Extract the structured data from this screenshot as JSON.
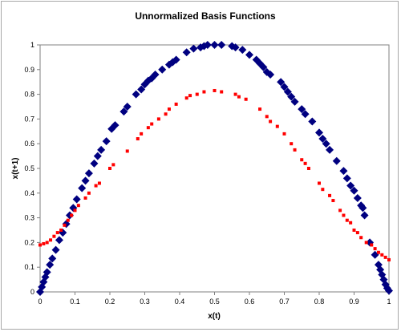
{
  "chart_data": {
    "type": "scatter",
    "title": "Unnormalized Basis Functions",
    "xlabel": "x(t)",
    "ylabel": "x(t+1)",
    "xlim": [
      0,
      1
    ],
    "ylim": [
      0,
      1
    ],
    "x_ticks": [
      "0",
      "0.1",
      "0.2",
      "0.3",
      "0.4",
      "0.5",
      "0.6",
      "0.7",
      "0.8",
      "0.9",
      "1"
    ],
    "y_ticks": [
      "0",
      "0.1",
      "0.2",
      "0.3",
      "0.4",
      "0.5",
      "0.6",
      "0.7",
      "0.8",
      "0.9",
      "1"
    ],
    "grid": false,
    "legend": "none",
    "series": [
      {
        "color": "#000080",
        "marker": "diamond",
        "points": [
          [
            0.0,
            0.0
          ],
          [
            0.005,
            0.02
          ],
          [
            0.01,
            0.04
          ],
          [
            0.015,
            0.06
          ],
          [
            0.02,
            0.08
          ],
          [
            0.028,
            0.11
          ],
          [
            0.035,
            0.135
          ],
          [
            0.045,
            0.17
          ],
          [
            0.055,
            0.21
          ],
          [
            0.065,
            0.24
          ],
          [
            0.075,
            0.275
          ],
          [
            0.085,
            0.31
          ],
          [
            0.095,
            0.34
          ],
          [
            0.105,
            0.375
          ],
          [
            0.12,
            0.42
          ],
          [
            0.13,
            0.45
          ],
          [
            0.14,
            0.48
          ],
          [
            0.155,
            0.52
          ],
          [
            0.165,
            0.55
          ],
          [
            0.175,
            0.575
          ],
          [
            0.19,
            0.61
          ],
          [
            0.205,
            0.66
          ],
          [
            0.215,
            0.675
          ],
          [
            0.24,
            0.73
          ],
          [
            0.25,
            0.75
          ],
          [
            0.275,
            0.8
          ],
          [
            0.29,
            0.82
          ],
          [
            0.3,
            0.84
          ],
          [
            0.31,
            0.855
          ],
          [
            0.32,
            0.865
          ],
          [
            0.33,
            0.88
          ],
          [
            0.35,
            0.9
          ],
          [
            0.37,
            0.92
          ],
          [
            0.38,
            0.93
          ],
          [
            0.39,
            0.94
          ],
          [
            0.42,
            0.97
          ],
          [
            0.44,
            0.985
          ],
          [
            0.46,
            0.99
          ],
          [
            0.47,
            0.995
          ],
          [
            0.48,
            1.0
          ],
          [
            0.5,
            1.0
          ],
          [
            0.52,
            1.0
          ],
          [
            0.55,
            0.995
          ],
          [
            0.56,
            0.99
          ],
          [
            0.58,
            0.98
          ],
          [
            0.6,
            0.96
          ],
          [
            0.62,
            0.94
          ],
          [
            0.63,
            0.925
          ],
          [
            0.64,
            0.91
          ],
          [
            0.65,
            0.89
          ],
          [
            0.66,
            0.88
          ],
          [
            0.69,
            0.85
          ],
          [
            0.7,
            0.83
          ],
          [
            0.71,
            0.81
          ],
          [
            0.72,
            0.79
          ],
          [
            0.73,
            0.77
          ],
          [
            0.75,
            0.74
          ],
          [
            0.76,
            0.72
          ],
          [
            0.78,
            0.69
          ],
          [
            0.8,
            0.645
          ],
          [
            0.81,
            0.62
          ],
          [
            0.82,
            0.6
          ],
          [
            0.83,
            0.575
          ],
          [
            0.85,
            0.53
          ],
          [
            0.87,
            0.49
          ],
          [
            0.88,
            0.46
          ],
          [
            0.89,
            0.43
          ],
          [
            0.9,
            0.41
          ],
          [
            0.91,
            0.38
          ],
          [
            0.92,
            0.35
          ],
          [
            0.925,
            0.34
          ],
          [
            0.93,
            0.31
          ],
          [
            0.945,
            0.2
          ],
          [
            0.96,
            0.15
          ],
          [
            0.97,
            0.11
          ],
          [
            0.975,
            0.09
          ],
          [
            0.98,
            0.07
          ],
          [
            0.985,
            0.05
          ],
          [
            0.99,
            0.03
          ],
          [
            0.995,
            0.015
          ],
          [
            1.0,
            0.005
          ]
        ]
      },
      {
        "color": "#ff0000",
        "marker": "square",
        "points": [
          [
            0.0,
            0.19
          ],
          [
            0.01,
            0.195
          ],
          [
            0.02,
            0.2
          ],
          [
            0.03,
            0.21
          ],
          [
            0.04,
            0.225
          ],
          [
            0.05,
            0.24
          ],
          [
            0.06,
            0.25
          ],
          [
            0.07,
            0.27
          ],
          [
            0.08,
            0.29
          ],
          [
            0.09,
            0.31
          ],
          [
            0.1,
            0.33
          ],
          [
            0.11,
            0.35
          ],
          [
            0.13,
            0.38
          ],
          [
            0.14,
            0.4
          ],
          [
            0.16,
            0.43
          ],
          [
            0.17,
            0.44
          ],
          [
            0.2,
            0.5
          ],
          [
            0.21,
            0.515
          ],
          [
            0.25,
            0.57
          ],
          [
            0.28,
            0.62
          ],
          [
            0.29,
            0.64
          ],
          [
            0.31,
            0.665
          ],
          [
            0.32,
            0.68
          ],
          [
            0.34,
            0.7
          ],
          [
            0.36,
            0.72
          ],
          [
            0.37,
            0.74
          ],
          [
            0.39,
            0.76
          ],
          [
            0.42,
            0.785
          ],
          [
            0.43,
            0.795
          ],
          [
            0.45,
            0.8
          ],
          [
            0.47,
            0.81
          ],
          [
            0.5,
            0.815
          ],
          [
            0.52,
            0.81
          ],
          [
            0.56,
            0.8
          ],
          [
            0.57,
            0.79
          ],
          [
            0.59,
            0.78
          ],
          [
            0.63,
            0.74
          ],
          [
            0.65,
            0.71
          ],
          [
            0.66,
            0.69
          ],
          [
            0.68,
            0.67
          ],
          [
            0.7,
            0.64
          ],
          [
            0.72,
            0.6
          ],
          [
            0.73,
            0.575
          ],
          [
            0.75,
            0.535
          ],
          [
            0.76,
            0.52
          ],
          [
            0.77,
            0.5
          ],
          [
            0.8,
            0.44
          ],
          [
            0.81,
            0.415
          ],
          [
            0.83,
            0.39
          ],
          [
            0.84,
            0.37
          ],
          [
            0.86,
            0.33
          ],
          [
            0.87,
            0.31
          ],
          [
            0.88,
            0.29
          ],
          [
            0.89,
            0.28
          ],
          [
            0.9,
            0.25
          ],
          [
            0.91,
            0.24
          ],
          [
            0.92,
            0.22
          ],
          [
            0.935,
            0.2
          ],
          [
            0.95,
            0.19
          ],
          [
            0.96,
            0.175
          ],
          [
            0.97,
            0.16
          ],
          [
            0.98,
            0.15
          ],
          [
            0.99,
            0.14
          ],
          [
            1.0,
            0.13
          ]
        ]
      }
    ]
  }
}
